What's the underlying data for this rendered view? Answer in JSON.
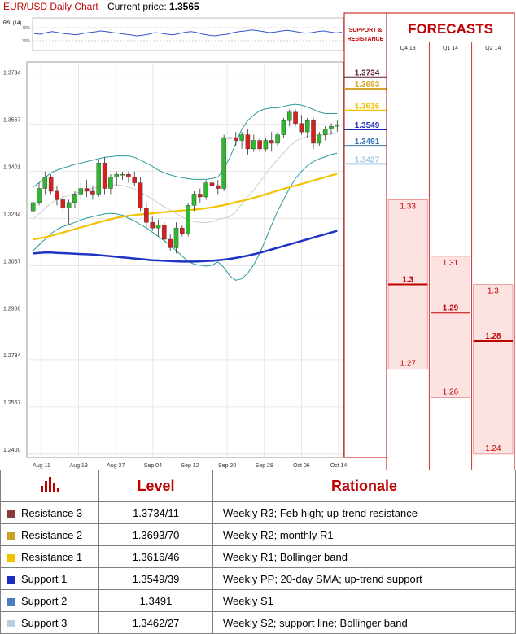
{
  "header": {
    "title": "EUR/USD Daily Chart",
    "price_label": "Current price:",
    "price_value": "1.3565"
  },
  "rsi": {
    "label": "RSI (14)",
    "levels": [
      "70%",
      "30%"
    ],
    "values": [
      52,
      50,
      55,
      58,
      55,
      52,
      50,
      48,
      52,
      55,
      57,
      60,
      58,
      55,
      53,
      50,
      48,
      45,
      47,
      50,
      55,
      53,
      50,
      48,
      52,
      56,
      58,
      55,
      50,
      47,
      45,
      48,
      50,
      55,
      58,
      60,
      63,
      61,
      58,
      55,
      57,
      60,
      62,
      59,
      56,
      53,
      55,
      58,
      60,
      57,
      54,
      56
    ]
  },
  "chart_data": {
    "type": "candlestick",
    "y_ticks": [
      "1.3734",
      "1.3567",
      "1.3401",
      "1.3234",
      "1.3067",
      "1.2900",
      "1.2734",
      "1.2567",
      "1.2400"
    ],
    "ylim": [
      1.2388,
      1.3788
    ],
    "x_ticks": [
      "Aug 11",
      "Aug 19",
      "Aug 27",
      "Sep 04",
      "Sep 12",
      "Sep 20",
      "Sep 28",
      "Oct 06",
      "Oct 14"
    ],
    "candles": [
      {
        "o": 1.326,
        "h": 1.33,
        "l": 1.324,
        "c": 1.329
      },
      {
        "o": 1.329,
        "h": 1.336,
        "l": 1.328,
        "c": 1.334
      },
      {
        "o": 1.334,
        "h": 1.34,
        "l": 1.332,
        "c": 1.338
      },
      {
        "o": 1.338,
        "h": 1.339,
        "l": 1.332,
        "c": 1.333
      },
      {
        "o": 1.333,
        "h": 1.335,
        "l": 1.328,
        "c": 1.33
      },
      {
        "o": 1.33,
        "h": 1.333,
        "l": 1.325,
        "c": 1.327
      },
      {
        "o": 1.327,
        "h": 1.33,
        "l": 1.321,
        "c": 1.329
      },
      {
        "o": 1.329,
        "h": 1.333,
        "l": 1.327,
        "c": 1.332
      },
      {
        "o": 1.332,
        "h": 1.336,
        "l": 1.33,
        "c": 1.334
      },
      {
        "o": 1.334,
        "h": 1.337,
        "l": 1.331,
        "c": 1.333
      },
      {
        "o": 1.333,
        "h": 1.335,
        "l": 1.33,
        "c": 1.332
      },
      {
        "o": 1.332,
        "h": 1.344,
        "l": 1.331,
        "c": 1.343
      },
      {
        "o": 1.343,
        "h": 1.345,
        "l": 1.332,
        "c": 1.334
      },
      {
        "o": 1.334,
        "h": 1.339,
        "l": 1.332,
        "c": 1.338
      },
      {
        "o": 1.338,
        "h": 1.34,
        "l": 1.335,
        "c": 1.339
      },
      {
        "o": 1.339,
        "h": 1.34,
        "l": 1.337,
        "c": 1.339
      },
      {
        "o": 1.339,
        "h": 1.34,
        "l": 1.336,
        "c": 1.338
      },
      {
        "o": 1.338,
        "h": 1.34,
        "l": 1.335,
        "c": 1.336
      },
      {
        "o": 1.336,
        "h": 1.338,
        "l": 1.326,
        "c": 1.327
      },
      {
        "o": 1.327,
        "h": 1.329,
        "l": 1.32,
        "c": 1.322
      },
      {
        "o": 1.322,
        "h": 1.324,
        "l": 1.319,
        "c": 1.32
      },
      {
        "o": 1.32,
        "h": 1.323,
        "l": 1.317,
        "c": 1.321
      },
      {
        "o": 1.321,
        "h": 1.322,
        "l": 1.315,
        "c": 1.316
      },
      {
        "o": 1.316,
        "h": 1.318,
        "l": 1.312,
        "c": 1.313
      },
      {
        "o": 1.313,
        "h": 1.322,
        "l": 1.311,
        "c": 1.32
      },
      {
        "o": 1.32,
        "h": 1.321,
        "l": 1.317,
        "c": 1.318
      },
      {
        "o": 1.318,
        "h": 1.329,
        "l": 1.317,
        "c": 1.328
      },
      {
        "o": 1.328,
        "h": 1.333,
        "l": 1.326,
        "c": 1.332
      },
      {
        "o": 1.332,
        "h": 1.334,
        "l": 1.329,
        "c": 1.331
      },
      {
        "o": 1.331,
        "h": 1.337,
        "l": 1.33,
        "c": 1.336
      },
      {
        "o": 1.336,
        "h": 1.34,
        "l": 1.334,
        "c": 1.335
      },
      {
        "o": 1.335,
        "h": 1.337,
        "l": 1.332,
        "c": 1.334
      },
      {
        "o": 1.334,
        "h": 1.353,
        "l": 1.333,
        "c": 1.352
      },
      {
        "o": 1.352,
        "h": 1.355,
        "l": 1.35,
        "c": 1.352
      },
      {
        "o": 1.352,
        "h": 1.354,
        "l": 1.349,
        "c": 1.351
      },
      {
        "o": 1.351,
        "h": 1.354,
        "l": 1.348,
        "c": 1.353
      },
      {
        "o": 1.353,
        "h": 1.355,
        "l": 1.346,
        "c": 1.348
      },
      {
        "o": 1.348,
        "h": 1.353,
        "l": 1.347,
        "c": 1.351
      },
      {
        "o": 1.351,
        "h": 1.352,
        "l": 1.347,
        "c": 1.348
      },
      {
        "o": 1.348,
        "h": 1.352,
        "l": 1.347,
        "c": 1.351
      },
      {
        "o": 1.351,
        "h": 1.354,
        "l": 1.347,
        "c": 1.35
      },
      {
        "o": 1.35,
        "h": 1.354,
        "l": 1.349,
        "c": 1.353
      },
      {
        "o": 1.353,
        "h": 1.359,
        "l": 1.352,
        "c": 1.358
      },
      {
        "o": 1.358,
        "h": 1.362,
        "l": 1.356,
        "c": 1.361
      },
      {
        "o": 1.361,
        "h": 1.362,
        "l": 1.356,
        "c": 1.357
      },
      {
        "o": 1.357,
        "h": 1.36,
        "l": 1.353,
        "c": 1.354
      },
      {
        "o": 1.354,
        "h": 1.359,
        "l": 1.352,
        "c": 1.358
      },
      {
        "o": 1.358,
        "h": 1.359,
        "l": 1.348,
        "c": 1.35
      },
      {
        "o": 1.35,
        "h": 1.354,
        "l": 1.349,
        "c": 1.353
      },
      {
        "o": 1.353,
        "h": 1.356,
        "l": 1.351,
        "c": 1.355
      },
      {
        "o": 1.355,
        "h": 1.357,
        "l": 1.353,
        "c": 1.356
      },
      {
        "o": 1.356,
        "h": 1.358,
        "l": 1.354,
        "c": 1.3565
      }
    ],
    "bb_upper": [
      1.3345,
      1.336,
      1.3378,
      1.3395,
      1.3405,
      1.3412,
      1.3418,
      1.3425,
      1.343,
      1.3435,
      1.344,
      1.3445,
      1.345,
      1.3452,
      1.3455,
      1.3455,
      1.3455,
      1.345,
      1.344,
      1.343,
      1.3418,
      1.3405,
      1.3395,
      1.3388,
      1.3382,
      1.3378,
      1.3375,
      1.3372,
      1.3372,
      1.3372,
      1.3375,
      1.338,
      1.341,
      1.345,
      1.35,
      1.355,
      1.358,
      1.36,
      1.3615,
      1.3622,
      1.3625,
      1.3625,
      1.363,
      1.3635,
      1.3638,
      1.3635,
      1.3628,
      1.362,
      1.361,
      1.3605,
      1.3605,
      1.3605
    ],
    "bb_lower": [
      1.312,
      1.314,
      1.316,
      1.318,
      1.3195,
      1.3205,
      1.3212,
      1.322,
      1.3228,
      1.3235,
      1.324,
      1.3245,
      1.325,
      1.3252,
      1.325,
      1.3245,
      1.3235,
      1.3225,
      1.3212,
      1.32,
      1.3185,
      1.317,
      1.3155,
      1.3138,
      1.312,
      1.31,
      1.3082,
      1.3072,
      1.3068,
      1.3065,
      1.3068,
      1.308,
      1.306,
      1.303,
      1.3015,
      1.302,
      1.304,
      1.307,
      1.311,
      1.316,
      1.321,
      1.326,
      1.33,
      1.334,
      1.3375,
      1.34,
      1.342,
      1.3435,
      1.3445,
      1.3452,
      1.346,
      1.3465
    ],
    "sma_mid": [
      1.3232,
      1.325,
      1.3269,
      1.3288,
      1.33,
      1.3309,
      1.3315,
      1.3323,
      1.3329,
      1.3335,
      1.334,
      1.3345,
      1.335,
      1.3352,
      1.3353,
      1.335,
      1.3345,
      1.3338,
      1.3326,
      1.3315,
      1.3302,
      1.3288,
      1.3275,
      1.3263,
      1.3251,
      1.3239,
      1.3229,
      1.3222,
      1.322,
      1.3219,
      1.3222,
      1.323,
      1.3235,
      1.324,
      1.3258,
      1.3285,
      1.331,
      1.3335,
      1.3362,
      1.3391,
      1.3418,
      1.3443,
      1.3465,
      1.3488,
      1.3507,
      1.3518,
      1.3524,
      1.3528,
      1.3528,
      1.3529,
      1.3533,
      1.3535
    ],
    "sma_yellow": [
      1.316,
      1.3163,
      1.3167,
      1.3172,
      1.3178,
      1.3184,
      1.319,
      1.3196,
      1.3202,
      1.3208,
      1.3214,
      1.322,
      1.3226,
      1.3231,
      1.3236,
      1.324,
      1.3243,
      1.3246,
      1.3248,
      1.325,
      1.3252,
      1.3254,
      1.3256,
      1.3258,
      1.326,
      1.3262,
      1.3263,
      1.3265,
      1.3267,
      1.327,
      1.3273,
      1.3277,
      1.3281,
      1.3286,
      1.3291,
      1.3296,
      1.3301,
      1.3307,
      1.3313,
      1.3319,
      1.3326,
      1.3332,
      1.3338,
      1.3344,
      1.335,
      1.3356,
      1.3362,
      1.3368,
      1.3374,
      1.338,
      1.3386,
      1.3392
    ],
    "sma_blue": [
      1.311,
      1.3112,
      1.3113,
      1.3113,
      1.3112,
      1.3111,
      1.311,
      1.3109,
      1.3108,
      1.3107,
      1.3106,
      1.3104,
      1.3102,
      1.31,
      1.3098,
      1.3096,
      1.3094,
      1.3092,
      1.309,
      1.3088,
      1.3086,
      1.3085,
      1.3084,
      1.3083,
      1.3082,
      1.3081,
      1.3081,
      1.3081,
      1.3082,
      1.3083,
      1.3084,
      1.3086,
      1.3088,
      1.3091,
      1.3094,
      1.3098,
      1.3102,
      1.3107,
      1.3112,
      1.3118,
      1.3124,
      1.313,
      1.3136,
      1.3142,
      1.3148,
      1.3154,
      1.316,
      1.3166,
      1.3172,
      1.3178,
      1.3184,
      1.319
    ],
    "sr_header": "SUPPORT & RESISTANCE",
    "sr_levels": [
      {
        "label": "1.3734",
        "value": 1.3734,
        "color": "#5b1a2e"
      },
      {
        "label": "1.3693",
        "value": 1.3693,
        "color": "#d4a52a"
      },
      {
        "label": "1.3616",
        "value": 1.3616,
        "color": "#f2c200"
      },
      {
        "label": "1.3549",
        "value": 1.3549,
        "color": "#1a2dbf"
      },
      {
        "label": "1.3491",
        "value": 1.3491,
        "color": "#3d77b0"
      },
      {
        "label": "1.3427",
        "value": 1.3427,
        "color": "#a8c8e0"
      }
    ],
    "forecasts": {
      "title": "FORECASTS",
      "columns": [
        {
          "label": "Q4 13",
          "top": 1.33,
          "median": 1.3,
          "bottom": 1.27
        },
        {
          "label": "Q1 14",
          "top": 1.31,
          "median": 1.29,
          "bottom": 1.26
        },
        {
          "label": "Q2 14",
          "top": 1.3,
          "median": 1.28,
          "bottom": 1.24
        }
      ]
    }
  },
  "table": {
    "headers": {
      "level": "Level",
      "rationale": "Rationale"
    },
    "rows": [
      {
        "name": "Resistance 3",
        "level": "1.3734/11",
        "rationale": "Weekly R3; Feb high; up-trend resistance",
        "color": "#8b3a3a"
      },
      {
        "name": "Resistance 2",
        "level": "1.3693/70",
        "rationale": "Weekly R2; monthly R1",
        "color": "#c9a227"
      },
      {
        "name": "Resistance 1",
        "level": "1.3616/46",
        "rationale": "Weekly R1; Bollinger band",
        "color": "#f2c200"
      },
      {
        "name": "Support 1",
        "level": "1.3549/39",
        "rationale": "Weekly PP; 20-day SMA; up-trend support",
        "color": "#1a2dbf"
      },
      {
        "name": "Support 2",
        "level": "1.3491",
        "rationale": "Weekly S1",
        "color": "#4a7fbf"
      },
      {
        "name": "Support 3",
        "level": "1.3462/27",
        "rationale": "Weekly S2; support line; Bollinger band",
        "color": "#b7cde0"
      }
    ]
  },
  "colors": {
    "bull": "#2db82d",
    "bear": "#d62020",
    "bb": "#2a9a9a",
    "mid": "#cccccc",
    "yellow_sma": "#f2c100",
    "blue_sma": "#1f33c4",
    "forecast_red": "#c00000",
    "forecast_fill": "#fde2e2"
  }
}
